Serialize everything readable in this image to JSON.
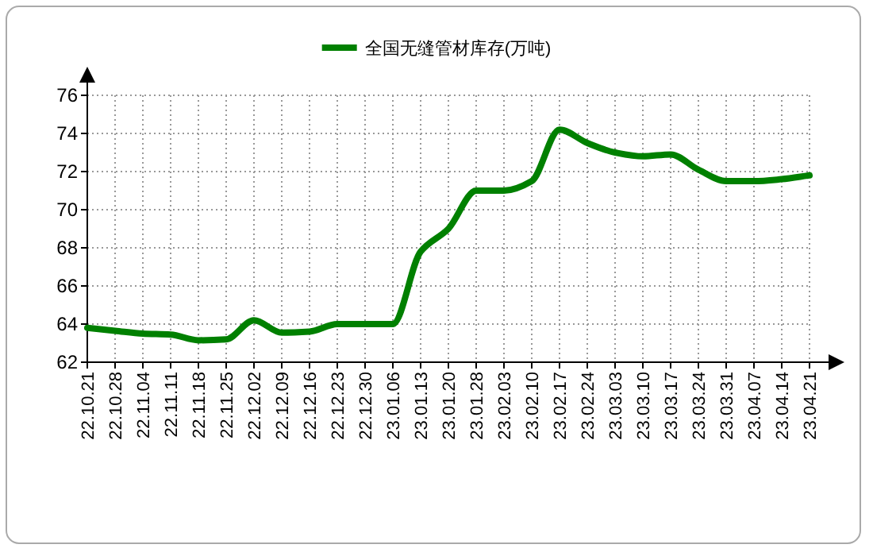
{
  "chart_data": {
    "type": "line",
    "legend": "top",
    "grid": true,
    "marker": "none",
    "line_style": "solid",
    "ylim": [
      62,
      76
    ],
    "yticks": [
      62,
      64,
      66,
      68,
      70,
      72,
      74,
      76
    ],
    "categories": [
      "22.10.21",
      "22.10.28",
      "22.11.04",
      "22.11.11",
      "22.11.18",
      "22.11.25",
      "22.12.02",
      "22.12.09",
      "22.12.16",
      "22.12.23",
      "22.12.30",
      "23.01.06",
      "23.01.13",
      "23.01.20",
      "23.01.28",
      "23.02.03",
      "23.02.10",
      "23.02.17",
      "23.02.24",
      "23.03.03",
      "23.03.10",
      "23.03.17",
      "23.03.24",
      "23.03.31",
      "23.04.07",
      "23.04.14",
      "23.04.21"
    ],
    "series": [
      {
        "name": "全国无缝管材库存(万吨)",
        "color": "#008000",
        "values": [
          63.8,
          63.65,
          63.5,
          63.45,
          63.15,
          63.2,
          64.2,
          63.55,
          63.6,
          64.0,
          64.0,
          64.0,
          67.8,
          69.0,
          71.0,
          71.0,
          71.5,
          74.2,
          73.5,
          73.0,
          72.8,
          72.9,
          72.1,
          71.5,
          71.5,
          71.6,
          71.8
        ]
      }
    ]
  }
}
